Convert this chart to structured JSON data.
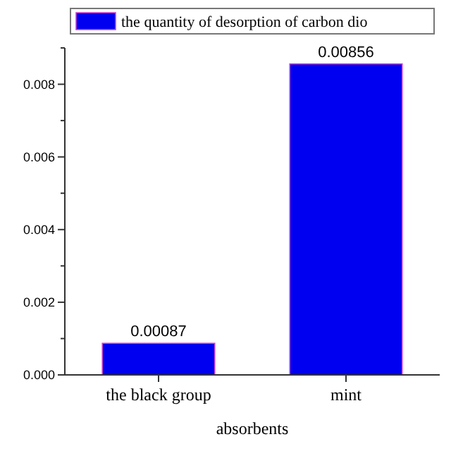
{
  "chart_data": {
    "type": "bar",
    "xlabel": "absorbents",
    "categories": [
      "the black group",
      "mint"
    ],
    "series": [
      {
        "name": "the quantity of desorption of carbon dio",
        "color": "#0000f0",
        "values": [
          0.00087,
          0.00856
        ]
      }
    ],
    "ylim": [
      0,
      0.009
    ],
    "yticks": [
      {
        "value": 0,
        "label": "0.000"
      },
      {
        "value": 0.001,
        "label": null
      },
      {
        "value": 0.002,
        "label": "0.002"
      },
      {
        "value": 0.003,
        "label": null
      },
      {
        "value": 0.004,
        "label": "0.004"
      },
      {
        "value": 0.005,
        "label": null
      },
      {
        "value": 0.006,
        "label": "0.006"
      },
      {
        "value": 0.007,
        "label": null
      },
      {
        "value": 0.008,
        "label": "0.008"
      },
      {
        "value": 0.009,
        "label": null
      }
    ],
    "data_labels": true,
    "legend": "top"
  }
}
